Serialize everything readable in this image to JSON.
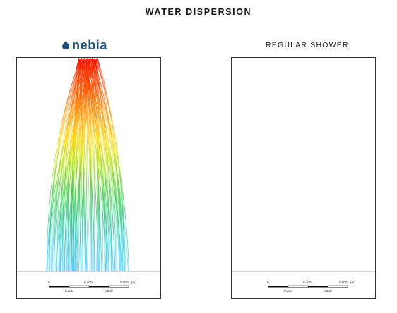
{
  "header": {
    "title": "WATER DISPERSION"
  },
  "left_panel": {
    "brand": {
      "logo_text": "nebia",
      "logo_icon": "drop-icon",
      "logo_color": "#1e4f78"
    }
  },
  "right_panel": {
    "label": "REGULAR SHOWER"
  },
  "scale_bar": {
    "top_labels": [
      "0",
      "0.400",
      "0.800"
    ],
    "unit": "(m)",
    "bottom_labels": [
      "0.200",
      "0.600"
    ]
  },
  "colors": {
    "gradient": [
      "#ff1a00",
      "#ff7a00",
      "#ffd800",
      "#a8e000",
      "#2ecc2e",
      "#22c8a0",
      "#33ccff",
      "#6aa0ff",
      "#5050ff"
    ]
  }
}
